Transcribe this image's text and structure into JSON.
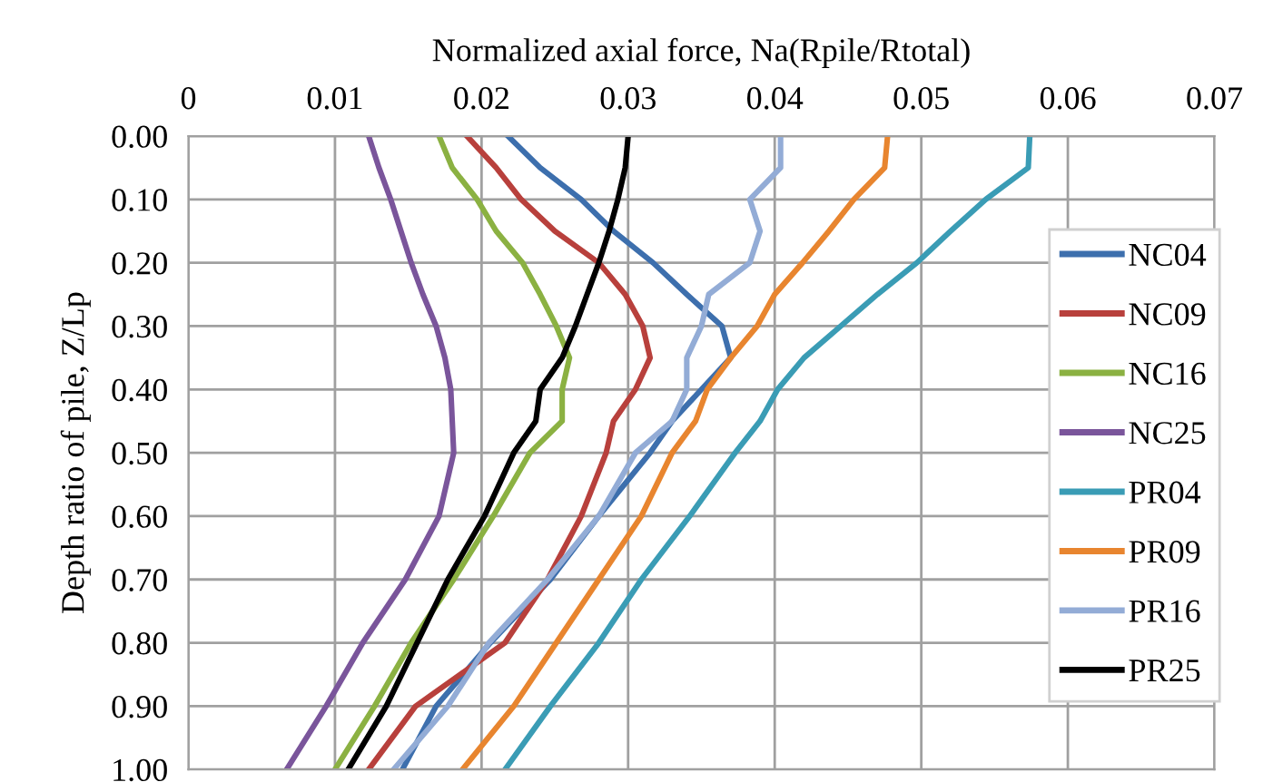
{
  "chart_data": {
    "type": "line",
    "orientation": "horizontal",
    "xlabel": "Normalized axial force, Na(Rpile/Rtotal)",
    "ylabel": "Depth ratio of pile, Z/Lp",
    "x": [
      0,
      0.05,
      0.1,
      0.15,
      0.2,
      0.25,
      0.3,
      0.35,
      0.4,
      0.45,
      0.5,
      0.6,
      0.7,
      0.8,
      0.9,
      1.0
    ],
    "series": [
      {
        "name": "NC04",
        "color": "#3d6fad",
        "values": [
          0.0218,
          0.024,
          0.0268,
          0.029,
          0.0317,
          0.034,
          0.0364,
          0.037,
          0.035,
          0.033,
          0.0315,
          0.028,
          0.0247,
          0.0206,
          0.0169,
          0.0146
        ]
      },
      {
        "name": "NC09",
        "color": "#b8403c",
        "values": [
          0.019,
          0.021,
          0.0227,
          0.025,
          0.028,
          0.0298,
          0.031,
          0.0315,
          0.0305,
          0.029,
          0.0285,
          0.0268,
          0.0245,
          0.0216,
          0.0155,
          0.0123
        ]
      },
      {
        "name": "NC16",
        "color": "#8bb142",
        "values": [
          0.0171,
          0.018,
          0.0197,
          0.021,
          0.0228,
          0.024,
          0.0251,
          0.026,
          0.0255,
          0.0255,
          0.0233,
          0.0208,
          0.0181,
          0.0152,
          0.0127,
          0.01
        ]
      },
      {
        "name": "NC25",
        "color": "#7a559b",
        "values": [
          0.0123,
          0.013,
          0.0138,
          0.0145,
          0.0152,
          0.016,
          0.0169,
          0.0175,
          0.0179,
          0.018,
          0.0181,
          0.0171,
          0.0148,
          0.0119,
          0.0094,
          0.0067
        ]
      },
      {
        "name": "PR04",
        "color": "#3a9cb5",
        "values": [
          0.0574,
          0.0573,
          0.0544,
          0.052,
          0.0497,
          0.047,
          0.0445,
          0.042,
          0.0402,
          0.039,
          0.0373,
          0.0342,
          0.0309,
          0.028,
          0.0247,
          0.0216
        ]
      },
      {
        "name": "PR09",
        "color": "#e8852f",
        "values": [
          0.0477,
          0.0475,
          0.0454,
          0.0437,
          0.0419,
          0.04,
          0.0388,
          0.037,
          0.0354,
          0.0346,
          0.033,
          0.0309,
          0.028,
          0.0251,
          0.0222,
          0.0187
        ]
      },
      {
        "name": "PR16",
        "color": "#93acd6",
        "values": [
          0.0404,
          0.0404,
          0.0383,
          0.039,
          0.0383,
          0.0355,
          0.035,
          0.034,
          0.034,
          0.033,
          0.0305,
          0.028,
          0.0245,
          0.0205,
          0.0177,
          0.014
        ]
      },
      {
        "name": "PR25",
        "color": "#000000",
        "values": [
          0.03,
          0.0298,
          0.0293,
          0.0287,
          0.028,
          0.0272,
          0.0264,
          0.0255,
          0.024,
          0.0237,
          0.0222,
          0.0202,
          0.0177,
          0.0156,
          0.0135,
          0.0109
        ]
      }
    ],
    "xlim": [
      0,
      0.07
    ],
    "xticks": [
      0,
      0.01,
      0.02,
      0.03,
      0.04,
      0.05,
      0.06,
      0.07
    ],
    "ylim": [
      1.0,
      0.0
    ],
    "yticks": [
      {
        "value": 0,
        "label": "0.00"
      },
      {
        "value": 0.1,
        "label": "0.10"
      },
      {
        "value": 0.2,
        "label": "0.20"
      },
      {
        "value": 0.3,
        "label": "0.30"
      },
      {
        "value": 0.4,
        "label": "0.40"
      },
      {
        "value": 0.5,
        "label": "0.50"
      },
      {
        "value": 0.6,
        "label": "0.60"
      },
      {
        "value": 0.7,
        "label": "0.70"
      },
      {
        "value": 0.8,
        "label": "0.80"
      },
      {
        "value": 0.9,
        "label": "0.90"
      },
      {
        "value": 1.0,
        "label": "1.00"
      }
    ],
    "grid": true,
    "legend": "right",
    "marker": "none",
    "line_style": "solid"
  }
}
